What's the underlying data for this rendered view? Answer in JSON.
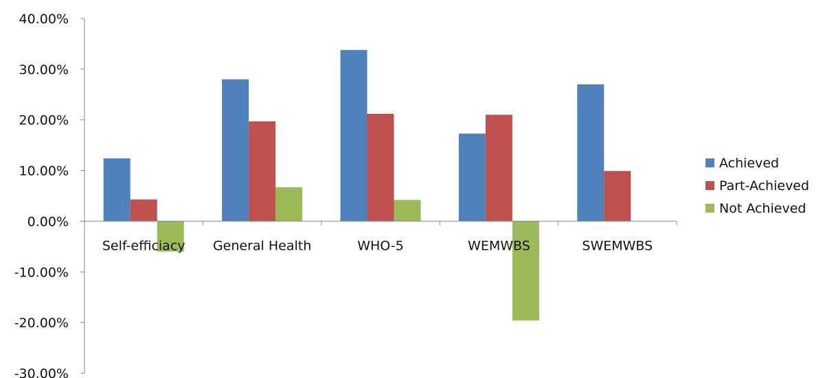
{
  "chart_data": {
    "type": "bar",
    "categories": [
      "Self-efficiacy",
      "General Health",
      "WHO-5",
      "WEMWBS",
      "SWEMWBS"
    ],
    "series": [
      {
        "name": "Achieved",
        "color": "#4F81BD",
        "values": [
          12.4,
          28.0,
          33.8,
          17.3,
          27.0
        ]
      },
      {
        "name": "Part-Achieved",
        "color": "#C0504D",
        "values": [
          4.3,
          19.7,
          21.2,
          21.0,
          9.9
        ]
      },
      {
        "name": "Not Achieved",
        "color": "#9BBB59",
        "values": [
          -6.0,
          6.7,
          4.2,
          -19.6,
          null
        ]
      }
    ],
    "ylim": [
      -30,
      40
    ],
    "yticks": [
      "40.00%",
      "30.00%",
      "20.00%",
      "10.00%",
      "0.00%",
      "-10.00%",
      "-20.00%",
      "-30.00%"
    ],
    "ytick_values": [
      40,
      30,
      20,
      10,
      0,
      -10,
      -20,
      -30
    ],
    "title": "",
    "xlabel": "",
    "ylabel": "",
    "grid": false,
    "legend_position": "right"
  }
}
